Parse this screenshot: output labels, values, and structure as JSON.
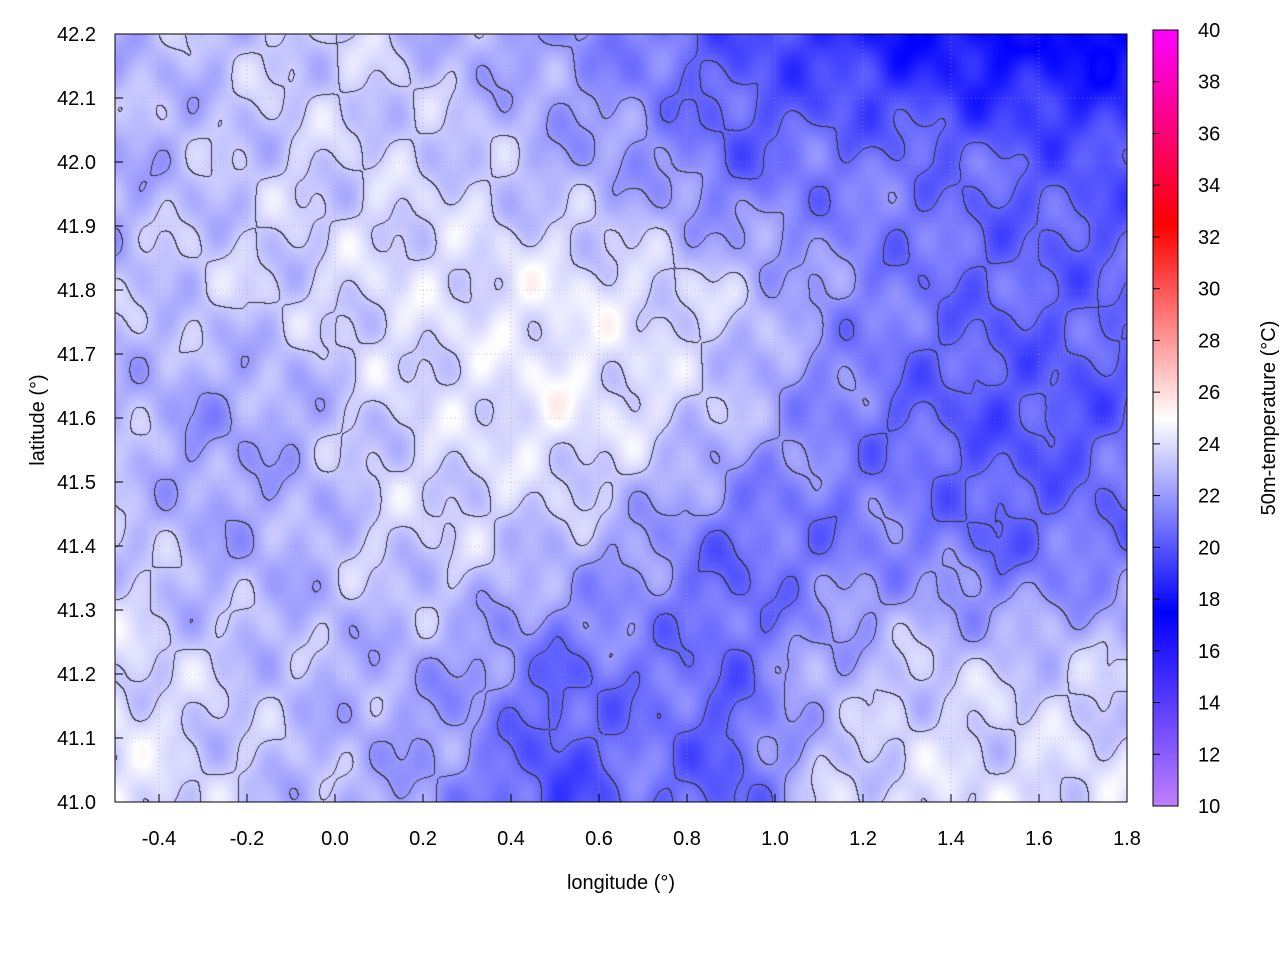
{
  "chart_data": {
    "type": "heatmap",
    "xlabel": "longitude (°)",
    "ylabel": "latitude (°)",
    "colorbar_label": "50m-temperature (°C)",
    "xlim": [
      -0.5,
      1.8
    ],
    "ylim": [
      41.0,
      42.2
    ],
    "clim": [
      10,
      40
    ],
    "x_ticks": [
      "-0.4",
      "-0.2",
      "0.0",
      "0.2",
      "0.4",
      "0.6",
      "0.8",
      "1.0",
      "1.2",
      "1.4",
      "1.6",
      "1.8"
    ],
    "y_ticks": [
      "41.0",
      "41.1",
      "41.2",
      "41.3",
      "41.4",
      "41.5",
      "41.6",
      "41.7",
      "41.8",
      "41.9",
      "42.0",
      "42.1",
      "42.2"
    ],
    "colorbar_ticks": [
      "10",
      "12",
      "14",
      "16",
      "18",
      "20",
      "22",
      "24",
      "26",
      "28",
      "30",
      "32",
      "34",
      "36",
      "38",
      "40"
    ],
    "colormap": [
      {
        "value": 10,
        "color": "#c080ff"
      },
      {
        "value": 17.5,
        "color": "#0000ff"
      },
      {
        "value": 25,
        "color": "#ffffff"
      },
      {
        "value": 32.5,
        "color": "#ff0000"
      },
      {
        "value": 40,
        "color": "#ff00ff"
      }
    ],
    "grid": true,
    "contours": true,
    "grid_lon": [
      -0.5,
      -0.3,
      -0.1,
      0.1,
      0.3,
      0.5,
      0.7,
      0.9,
      1.1,
      1.3,
      1.5,
      1.7,
      1.8
    ],
    "grid_lat": [
      42.2,
      42.0,
      41.8,
      41.6,
      41.4,
      41.2,
      41.0
    ],
    "temperature_grid": [
      [
        23,
        23,
        23.5,
        23.5,
        22.5,
        22,
        21,
        20,
        19,
        18,
        17.5,
        17.5,
        17.5
      ],
      [
        22.5,
        23,
        23.5,
        23.5,
        23.5,
        22.5,
        22,
        20.5,
        21,
        21,
        20.5,
        20,
        20
      ],
      [
        23,
        23.5,
        23.5,
        24,
        24,
        24.5,
        24,
        23.5,
        22,
        21,
        20.5,
        20.5,
        20.5
      ],
      [
        23,
        22,
        22.5,
        23.5,
        24,
        24.5,
        24,
        23,
        21.5,
        20.5,
        20,
        20,
        20.5
      ],
      [
        23.5,
        22.5,
        22.5,
        23.5,
        23.5,
        23,
        22,
        20.5,
        21,
        21.5,
        20.5,
        21,
        21
      ],
      [
        24,
        23.5,
        23,
        22.5,
        22,
        20.5,
        21,
        20.5,
        22.5,
        23.5,
        23.5,
        23.5,
        23.5
      ],
      [
        24.5,
        23.5,
        23,
        22.5,
        21.5,
        19.5,
        21,
        20,
        23.5,
        24,
        24,
        24,
        24
      ]
    ]
  }
}
